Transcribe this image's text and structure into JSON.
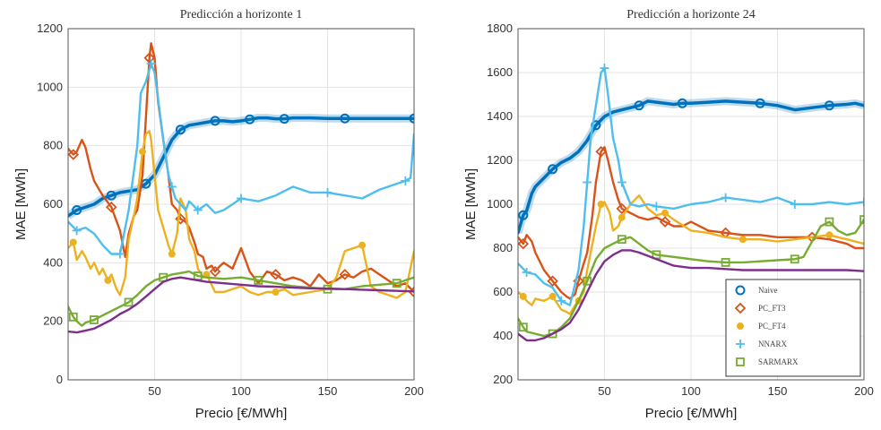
{
  "chart_data": [
    {
      "type": "line",
      "title": "Predicción a horizonte 1",
      "xlabel": "Precio [€/MWh]",
      "ylabel": "MAE [MWh]",
      "xlim": [
        0,
        200
      ],
      "ylim": [
        0,
        1200
      ],
      "xticks": [
        50,
        100,
        150,
        200
      ],
      "yticks": [
        0,
        200,
        400,
        600,
        800,
        1000,
        1200
      ],
      "grid": true,
      "legend": false,
      "series": [
        {
          "name": "Naive",
          "color": "#0072BD",
          "marker": "circle",
          "x": [
            0,
            5,
            10,
            15,
            20,
            25,
            30,
            35,
            40,
            45,
            50,
            55,
            60,
            65,
            70,
            75,
            80,
            85,
            90,
            95,
            100,
            105,
            110,
            115,
            120,
            125,
            130,
            140,
            150,
            160,
            170,
            180,
            190,
            200
          ],
          "y": [
            560,
            580,
            590,
            600,
            620,
            630,
            640,
            645,
            650,
            670,
            700,
            760,
            820,
            855,
            870,
            875,
            880,
            885,
            885,
            882,
            885,
            890,
            895,
            895,
            892,
            892,
            895,
            895,
            893,
            893,
            893,
            893,
            893,
            893
          ]
        },
        {
          "name": "PC_FT3",
          "color": "#D95319",
          "marker": "diamond",
          "x": [
            0,
            3,
            5,
            8,
            10,
            13,
            15,
            18,
            20,
            25,
            30,
            33,
            35,
            38,
            40,
            43,
            45,
            47,
            48,
            50,
            52,
            55,
            58,
            60,
            63,
            65,
            68,
            70,
            73,
            75,
            78,
            80,
            83,
            85,
            88,
            90,
            95,
            100,
            105,
            110,
            115,
            120,
            125,
            130,
            135,
            140,
            145,
            150,
            155,
            160,
            165,
            170,
            175,
            180,
            185,
            190,
            195,
            200
          ],
          "y": [
            790,
            770,
            780,
            820,
            795,
            720,
            680,
            650,
            630,
            590,
            510,
            420,
            500,
            560,
            580,
            700,
            900,
            1100,
            1150,
            1100,
            950,
            820,
            700,
            600,
            580,
            550,
            540,
            520,
            470,
            430,
            420,
            380,
            390,
            370,
            390,
            400,
            380,
            450,
            370,
            330,
            370,
            360,
            340,
            350,
            340,
            320,
            360,
            330,
            340,
            360,
            350,
            370,
            380,
            360,
            340,
            320,
            330,
            300
          ]
        },
        {
          "name": "PC_FT4",
          "color": "#EDB120",
          "marker": "circle-filled",
          "x": [
            0,
            3,
            5,
            8,
            10,
            13,
            15,
            18,
            20,
            23,
            25,
            28,
            30,
            33,
            35,
            38,
            40,
            43,
            45,
            47,
            48,
            50,
            52,
            55,
            58,
            60,
            63,
            65,
            68,
            70,
            73,
            75,
            78,
            80,
            85,
            90,
            95,
            100,
            105,
            110,
            115,
            120,
            125,
            130,
            140,
            150,
            155,
            160,
            165,
            170,
            175,
            180,
            185,
            190,
            195,
            200
          ],
          "y": [
            450,
            470,
            410,
            440,
            420,
            380,
            400,
            360,
            380,
            340,
            360,
            310,
            290,
            350,
            480,
            560,
            620,
            780,
            840,
            850,
            820,
            700,
            580,
            520,
            460,
            430,
            500,
            620,
            580,
            480,
            440,
            380,
            350,
            360,
            300,
            300,
            310,
            320,
            300,
            290,
            300,
            300,
            310,
            290,
            300,
            310,
            350,
            440,
            450,
            460,
            320,
            300,
            290,
            280,
            300,
            440
          ]
        },
        {
          "name": "NNARX",
          "color": "#4DBEEE",
          "marker": "plus",
          "x": [
            0,
            5,
            10,
            15,
            20,
            25,
            30,
            35,
            40,
            42,
            45,
            48,
            50,
            52,
            55,
            58,
            60,
            62,
            65,
            68,
            70,
            75,
            80,
            85,
            90,
            95,
            100,
            110,
            120,
            130,
            140,
            150,
            160,
            170,
            180,
            190,
            195,
            198,
            200
          ],
          "y": [
            540,
            510,
            520,
            500,
            460,
            430,
            430,
            580,
            800,
            980,
            1020,
            1080,
            1050,
            960,
            820,
            700,
            660,
            620,
            600,
            580,
            610,
            580,
            600,
            570,
            580,
            600,
            620,
            610,
            630,
            660,
            640,
            640,
            630,
            620,
            650,
            670,
            680,
            690,
            840
          ]
        },
        {
          "name": "SARMARX",
          "color": "#77AC30",
          "marker": "square",
          "x": [
            0,
            3,
            5,
            8,
            10,
            15,
            20,
            25,
            30,
            35,
            40,
            45,
            50,
            55,
            60,
            65,
            70,
            75,
            80,
            90,
            100,
            110,
            120,
            130,
            140,
            150,
            160,
            170,
            180,
            190,
            195,
            200
          ],
          "y": [
            250,
            215,
            200,
            185,
            195,
            205,
            220,
            235,
            250,
            265,
            290,
            320,
            340,
            350,
            360,
            365,
            370,
            355,
            350,
            345,
            350,
            340,
            330,
            320,
            315,
            310,
            310,
            320,
            325,
            330,
            340,
            350
          ]
        },
        {
          "name": "",
          "color": "#7E2F8E",
          "marker": "none",
          "x": [
            0,
            5,
            10,
            15,
            20,
            25,
            30,
            35,
            40,
            45,
            50,
            55,
            60,
            65,
            70,
            80,
            90,
            100,
            110,
            120,
            130,
            140,
            150,
            160,
            170,
            180,
            190,
            200
          ],
          "y": [
            165,
            162,
            168,
            175,
            190,
            205,
            225,
            240,
            260,
            285,
            310,
            335,
            345,
            350,
            345,
            335,
            330,
            325,
            320,
            318,
            315,
            313,
            312,
            310,
            308,
            306,
            304,
            302
          ]
        }
      ]
    },
    {
      "type": "line",
      "title": "Predicción a horizonte 24",
      "xlabel": "Precio [€/MWh]",
      "ylabel": "MAE [MWh]",
      "xlim": [
        0,
        200
      ],
      "ylim": [
        200,
        1800
      ],
      "xticks": [
        50,
        100,
        150,
        200
      ],
      "yticks": [
        200,
        400,
        600,
        800,
        1000,
        1200,
        1400,
        1600,
        1800
      ],
      "grid": true,
      "legend": true,
      "legend_position": "bottom-right",
      "series": [
        {
          "name": "Naive",
          "color": "#0072BD",
          "marker": "circle",
          "x": [
            0,
            3,
            5,
            8,
            10,
            15,
            20,
            25,
            30,
            35,
            40,
            45,
            50,
            55,
            60,
            65,
            70,
            75,
            80,
            85,
            90,
            95,
            100,
            110,
            120,
            130,
            140,
            150,
            155,
            160,
            170,
            180,
            190,
            195,
            200
          ],
          "y": [
            870,
            950,
            970,
            1050,
            1080,
            1120,
            1160,
            1190,
            1210,
            1240,
            1290,
            1360,
            1400,
            1420,
            1430,
            1440,
            1450,
            1470,
            1465,
            1460,
            1455,
            1460,
            1460,
            1465,
            1470,
            1465,
            1460,
            1450,
            1440,
            1430,
            1440,
            1450,
            1455,
            1460,
            1450
          ]
        },
        {
          "name": "PC_FT3",
          "color": "#D95319",
          "marker": "diamond",
          "x": [
            0,
            3,
            5,
            8,
            10,
            15,
            20,
            25,
            28,
            30,
            33,
            35,
            38,
            40,
            43,
            45,
            48,
            50,
            52,
            55,
            58,
            60,
            65,
            70,
            75,
            80,
            85,
            90,
            95,
            100,
            110,
            120,
            130,
            140,
            150,
            160,
            170,
            180,
            190,
            195,
            200
          ],
          "y": [
            850,
            820,
            860,
            830,
            780,
            700,
            650,
            600,
            580,
            570,
            590,
            650,
            730,
            780,
            950,
            1100,
            1240,
            1260,
            1200,
            1100,
            1020,
            980,
            960,
            940,
            930,
            940,
            920,
            900,
            900,
            920,
            880,
            870,
            860,
            860,
            850,
            850,
            850,
            840,
            820,
            800,
            800
          ]
        },
        {
          "name": "PC_FT4",
          "color": "#EDB120",
          "marker": "circle-filled",
          "x": [
            0,
            3,
            5,
            8,
            10,
            15,
            20,
            25,
            28,
            30,
            33,
            35,
            38,
            40,
            43,
            45,
            48,
            50,
            53,
            55,
            58,
            60,
            65,
            70,
            75,
            80,
            85,
            90,
            100,
            110,
            120,
            130,
            140,
            150,
            160,
            170,
            180,
            185,
            190,
            195,
            200
          ],
          "y": [
            600,
            580,
            560,
            540,
            570,
            560,
            580,
            520,
            510,
            500,
            540,
            560,
            600,
            700,
            820,
            900,
            1000,
            1010,
            960,
            880,
            900,
            940,
            1000,
            1040,
            980,
            950,
            960,
            930,
            880,
            870,
            850,
            840,
            840,
            830,
            840,
            850,
            860,
            850,
            840,
            830,
            820
          ]
        },
        {
          "name": "NNARX",
          "color": "#4DBEEE",
          "marker": "plus",
          "x": [
            0,
            5,
            10,
            15,
            20,
            25,
            30,
            35,
            38,
            40,
            42,
            45,
            48,
            50,
            52,
            55,
            58,
            60,
            65,
            70,
            75,
            80,
            90,
            100,
            110,
            120,
            130,
            140,
            150,
            160,
            170,
            180,
            190,
            200
          ],
          "y": [
            730,
            690,
            680,
            640,
            620,
            560,
            540,
            700,
            900,
            1100,
            1300,
            1450,
            1600,
            1620,
            1500,
            1300,
            1200,
            1100,
            1000,
            990,
            1000,
            990,
            980,
            1000,
            1010,
            1030,
            1020,
            1010,
            1030,
            1000,
            1000,
            1010,
            1000,
            1010
          ]
        },
        {
          "name": "SARMARX",
          "color": "#77AC30",
          "marker": "square",
          "x": [
            0,
            3,
            5,
            10,
            15,
            20,
            25,
            30,
            35,
            40,
            45,
            50,
            55,
            60,
            65,
            70,
            75,
            80,
            90,
            100,
            110,
            120,
            130,
            140,
            150,
            160,
            165,
            170,
            175,
            180,
            185,
            190,
            195,
            200
          ],
          "y": [
            480,
            440,
            420,
            410,
            400,
            410,
            440,
            480,
            560,
            650,
            750,
            800,
            820,
            840,
            850,
            820,
            790,
            770,
            760,
            750,
            740,
            735,
            735,
            740,
            745,
            750,
            760,
            830,
            900,
            920,
            880,
            860,
            870,
            930
          ]
        },
        {
          "name": "",
          "color": "#7E2F8E",
          "marker": "none",
          "x": [
            0,
            5,
            10,
            15,
            20,
            25,
            30,
            35,
            40,
            45,
            50,
            55,
            60,
            65,
            70,
            80,
            90,
            100,
            110,
            120,
            130,
            140,
            150,
            160,
            170,
            180,
            190,
            200
          ],
          "y": [
            410,
            380,
            380,
            390,
            410,
            430,
            460,
            520,
            600,
            680,
            740,
            770,
            790,
            790,
            780,
            750,
            720,
            710,
            710,
            705,
            700,
            700,
            700,
            700,
            700,
            700,
            700,
            695
          ]
        }
      ]
    }
  ]
}
